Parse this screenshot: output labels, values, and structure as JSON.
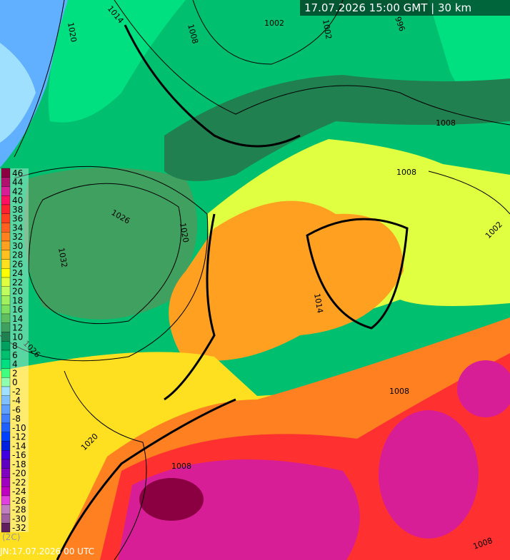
{
  "header": {
    "timestamp": "17.07.2026 15:00 GMT | 30 km"
  },
  "footer": {
    "run": "JN:17.07.2026 00 UTC",
    "note": "(2C)"
  },
  "legend": {
    "values": [
      46,
      44,
      42,
      40,
      38,
      36,
      34,
      32,
      30,
      28,
      26,
      24,
      22,
      20,
      18,
      16,
      14,
      12,
      10,
      8,
      6,
      4,
      2,
      0,
      -2,
      -4,
      -6,
      -8,
      -10,
      -12,
      -14,
      -16,
      -18,
      -20,
      -22,
      -24,
      -26,
      -28,
      -30,
      -32
    ],
    "colors": [
      "#8a0040",
      "#b0106e",
      "#d81e96",
      "#ff1060",
      "#ff2030",
      "#ff4020",
      "#ff6020",
      "#ff8020",
      "#ffa020",
      "#ffc020",
      "#ffe020",
      "#ffff00",
      "#e0ff40",
      "#c0ff60",
      "#a0f060",
      "#80e060",
      "#60c060",
      "#40a060",
      "#208050",
      "#00a060",
      "#00c070",
      "#00e080",
      "#40ff80",
      "#90ffb0",
      "#a0e0ff",
      "#80c0ff",
      "#60a0ff",
      "#4080ff",
      "#2060ff",
      "#0040ff",
      "#0020e0",
      "#4000e0",
      "#6000c0",
      "#8000c0",
      "#a000c0",
      "#c000c0",
      "#e040e0",
      "#c080c0",
      "#a060a0",
      "#602060"
    ]
  },
  "isobar_labels": [
    1020,
    1014,
    1008,
    1002,
    1002,
    996,
    1008,
    1008,
    1026,
    1020,
    1032,
    1026,
    1020,
    1008,
    1008,
    1002,
    1008,
    1014
  ]
}
